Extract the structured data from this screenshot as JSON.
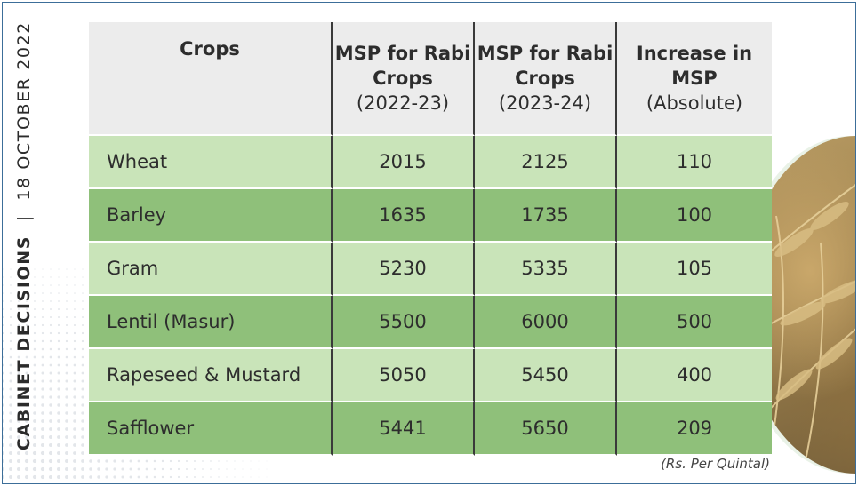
{
  "side_caption": {
    "bold": "CABINET DECISIONS",
    "separator": "|",
    "date": "18 OCTOBER 2022"
  },
  "table": {
    "headers": [
      {
        "lines": [
          "Crops"
        ],
        "period": ""
      },
      {
        "lines": [
          "MSP for Rabi",
          "Crops"
        ],
        "period": "(2022-23)"
      },
      {
        "lines": [
          "MSP for Rabi",
          "Crops"
        ],
        "period": "(2023-24)"
      },
      {
        "lines": [
          "Increase in",
          "MSP"
        ],
        "period": "(Absolute)"
      }
    ],
    "rows": [
      {
        "crop": "Wheat",
        "msp_2022_23": "2015",
        "msp_2023_24": "2125",
        "increase": "110"
      },
      {
        "crop": "Barley",
        "msp_2022_23": "1635",
        "msp_2023_24": "1735",
        "increase": "100"
      },
      {
        "crop": "Gram",
        "msp_2022_23": "5230",
        "msp_2023_24": "5335",
        "increase": "105"
      },
      {
        "crop": "Lentil (Masur)",
        "msp_2022_23": "5500",
        "msp_2023_24": "6000",
        "increase": "500"
      },
      {
        "crop": "Rapeseed & Mustard",
        "msp_2022_23": "5050",
        "msp_2023_24": "5450",
        "increase": "400"
      },
      {
        "crop": "Safflower",
        "msp_2022_23": "5441",
        "msp_2023_24": "5650",
        "increase": "209"
      }
    ]
  },
  "unit_note": "(Rs. Per Quintal)",
  "colors": {
    "header_bg": "#ececec",
    "row_light": "#c9e4b9",
    "row_dark": "#8fc07a",
    "frame_border": "#3c6e99"
  },
  "decor": {
    "image": "wheat-photo"
  }
}
